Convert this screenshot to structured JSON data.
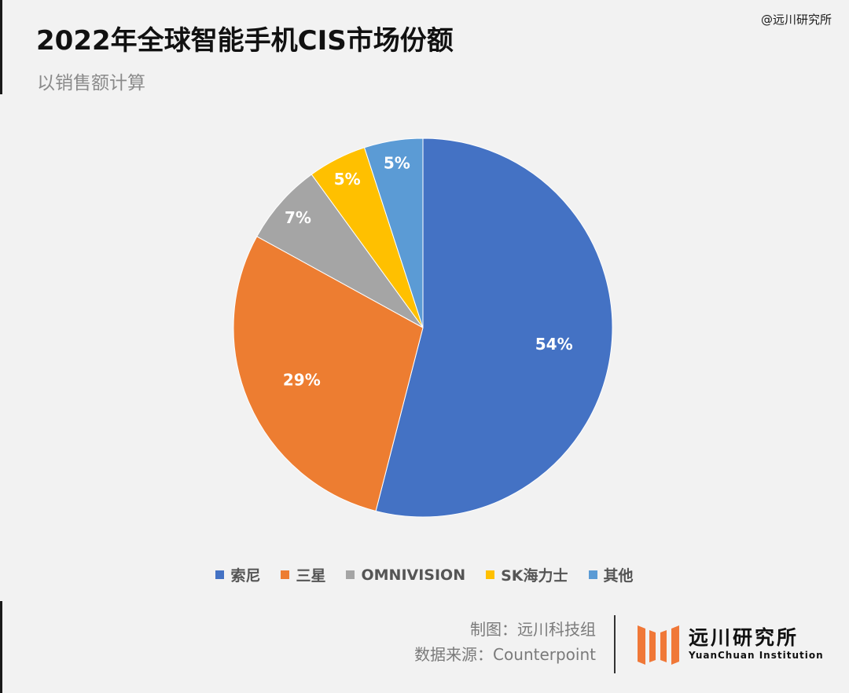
{
  "header": {
    "title": "2022年全球智能手机CIS市场份额",
    "subtitle": "以销售额计算",
    "watermark": "@远川研究所"
  },
  "chart_data": {
    "type": "pie",
    "title": "2022年全球智能手机CIS市场份额",
    "subtitle": "以销售额计算",
    "unit": "%",
    "categories": [
      "索尼",
      "三星",
      "OMNIVISION",
      "SK海力士",
      "其他"
    ],
    "values": [
      54,
      29,
      7,
      5,
      5
    ],
    "labels": [
      "54%",
      "29%",
      "7%",
      "5%",
      "5%"
    ],
    "colors": [
      "#4472c4",
      "#ed7d31",
      "#a5a5a5",
      "#ffc000",
      "#5b9bd5"
    ],
    "start_angle": "12 o'clock",
    "direction": "clockwise",
    "legend_position": "bottom"
  },
  "legend": {
    "items": [
      {
        "label": "索尼",
        "color": "#4472c4"
      },
      {
        "label": "三星",
        "color": "#ed7d31"
      },
      {
        "label": "OMNIVISION",
        "color": "#a5a5a5"
      },
      {
        "label": "SK海力士",
        "color": "#ffc000"
      },
      {
        "label": "其他",
        "color": "#5b9bd5"
      }
    ]
  },
  "footer": {
    "credit_chart": "制图：远川科技组",
    "credit_source": "数据来源：Counterpoint",
    "logo_name": "远川研究所",
    "logo_sub": "YuanChuan Institution",
    "logo_icon": "four-bars-logo-icon",
    "logo_color": "#f07838"
  }
}
